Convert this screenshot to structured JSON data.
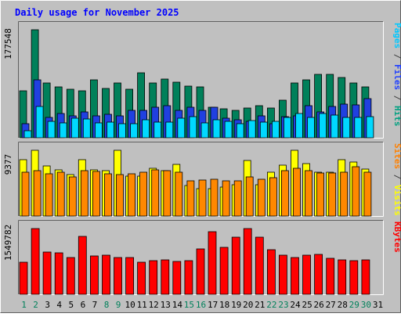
{
  "chart_data": {
    "type": "bar",
    "title": "Daily usage for November 2025",
    "categories": [
      "1",
      "2",
      "3",
      "4",
      "5",
      "6",
      "7",
      "8",
      "9",
      "10",
      "11",
      "12",
      "13",
      "14",
      "15",
      "16",
      "17",
      "18",
      "19",
      "20",
      "21",
      "22",
      "23",
      "24",
      "25",
      "26",
      "27",
      "28",
      "29",
      "30",
      "31"
    ],
    "weekend_days": [
      "1",
      "2",
      "8",
      "9",
      "15",
      "16",
      "22",
      "23",
      "29",
      "30"
    ],
    "panels": [
      {
        "id": "top",
        "max_label": "177548",
        "ymax": 177548,
        "series_labels": [
          {
            "text": "Pages",
            "color": "#00c8ff"
          },
          {
            "text": " / ",
            "color": "#404040"
          },
          {
            "text": "Files",
            "color": "#2040ff"
          },
          {
            "text": " / ",
            "color": "#404040"
          },
          {
            "text": "Hits",
            "color": "#00a080"
          }
        ],
        "series": [
          {
            "name": "Hits",
            "color": "#00805a",
            "values": [
              77000,
              177548,
              89500,
              83500,
              80000,
              77000,
              95000,
              81500,
              90500,
              80000,
              106500,
              90500,
              97000,
              91000,
              85500,
              83000,
              50600,
              48100,
              44900,
              49300,
              52700,
              49300,
              61700,
              89500,
              94800,
              104700,
              104700,
              98500,
              90400,
              83300,
              null
            ]
          },
          {
            "name": "Files",
            "color": "#2040e0",
            "values": [
              23500,
              95800,
              34000,
              39500,
              36500,
              42500,
              35500,
              38500,
              36300,
              44600,
              44600,
              50600,
              52700,
              44600,
              50800,
              44600,
              50300,
              32600,
              29300,
              26500,
              35500,
              23500,
              35000,
              36500,
              53100,
              42400,
              51600,
              54900,
              54200,
              64100,
              null
            ]
          },
          {
            "name": "Pages",
            "color": "#00d8ff",
            "values": [
              12000,
              51000,
              27000,
              25000,
              32000,
              30500,
              24000,
              26000,
              23000,
              23500,
              29000,
              26000,
              26000,
              32000,
              34500,
              25000,
              29000,
              27000,
              23500,
              28500,
              26000,
              27500,
              34000,
              40500,
              33500,
              39500,
              37500,
              34000,
              33000,
              34500,
              null
            ]
          }
        ]
      },
      {
        "id": "middle",
        "max_label": "9377",
        "ymax": 9377,
        "series_labels": [
          {
            "text": "Sites",
            "color": "#ff8000"
          },
          {
            "text": " / ",
            "color": "#404040"
          },
          {
            "text": "Visits",
            "color": "#ffff00"
          }
        ],
        "series": [
          {
            "name": "Visits",
            "color": "#ffff00",
            "values": [
              8000,
              9377,
              7100,
              6600,
              5900,
              8000,
              6600,
              6500,
              9377,
              5700,
              5700,
              6800,
              6500,
              7400,
              4400,
              3900,
              3900,
              4100,
              4500,
              7900,
              4500,
              6200,
              7300,
              9377,
              7500,
              6300,
              6200,
              8000,
              7700,
              6700,
              null
            ]
          },
          {
            "name": "Sites",
            "color": "#ff8800",
            "values": [
              6200,
              6500,
              6000,
              6300,
              5600,
              6500,
              6400,
              6000,
              5900,
              6000,
              6200,
              6600,
              6500,
              6300,
              5000,
              5100,
              5300,
              5000,
              5000,
              5600,
              5200,
              5500,
              6500,
              6800,
              6500,
              6100,
              6100,
              6300,
              7000,
              6200,
              null
            ]
          }
        ]
      },
      {
        "id": "bottom",
        "max_label": "1549782",
        "ymax": 1549782,
        "series_labels": [
          {
            "text": "KBytes",
            "color": "#ff0000"
          }
        ],
        "series": [
          {
            "name": "KBytes",
            "color": "#ff0000",
            "values": [
              760000,
              1549782,
              1000000,
              975000,
              860000,
              1360000,
              900000,
              915000,
              860000,
              870000,
              755000,
              800000,
              815000,
              780000,
              785000,
              1070000,
              1480000,
              1110000,
              1340000,
              1549782,
              1350000,
              1050000,
              920000,
              875000,
              920000,
              945000,
              845000,
              815000,
              790000,
              805000,
              null
            ]
          }
        ]
      }
    ]
  }
}
